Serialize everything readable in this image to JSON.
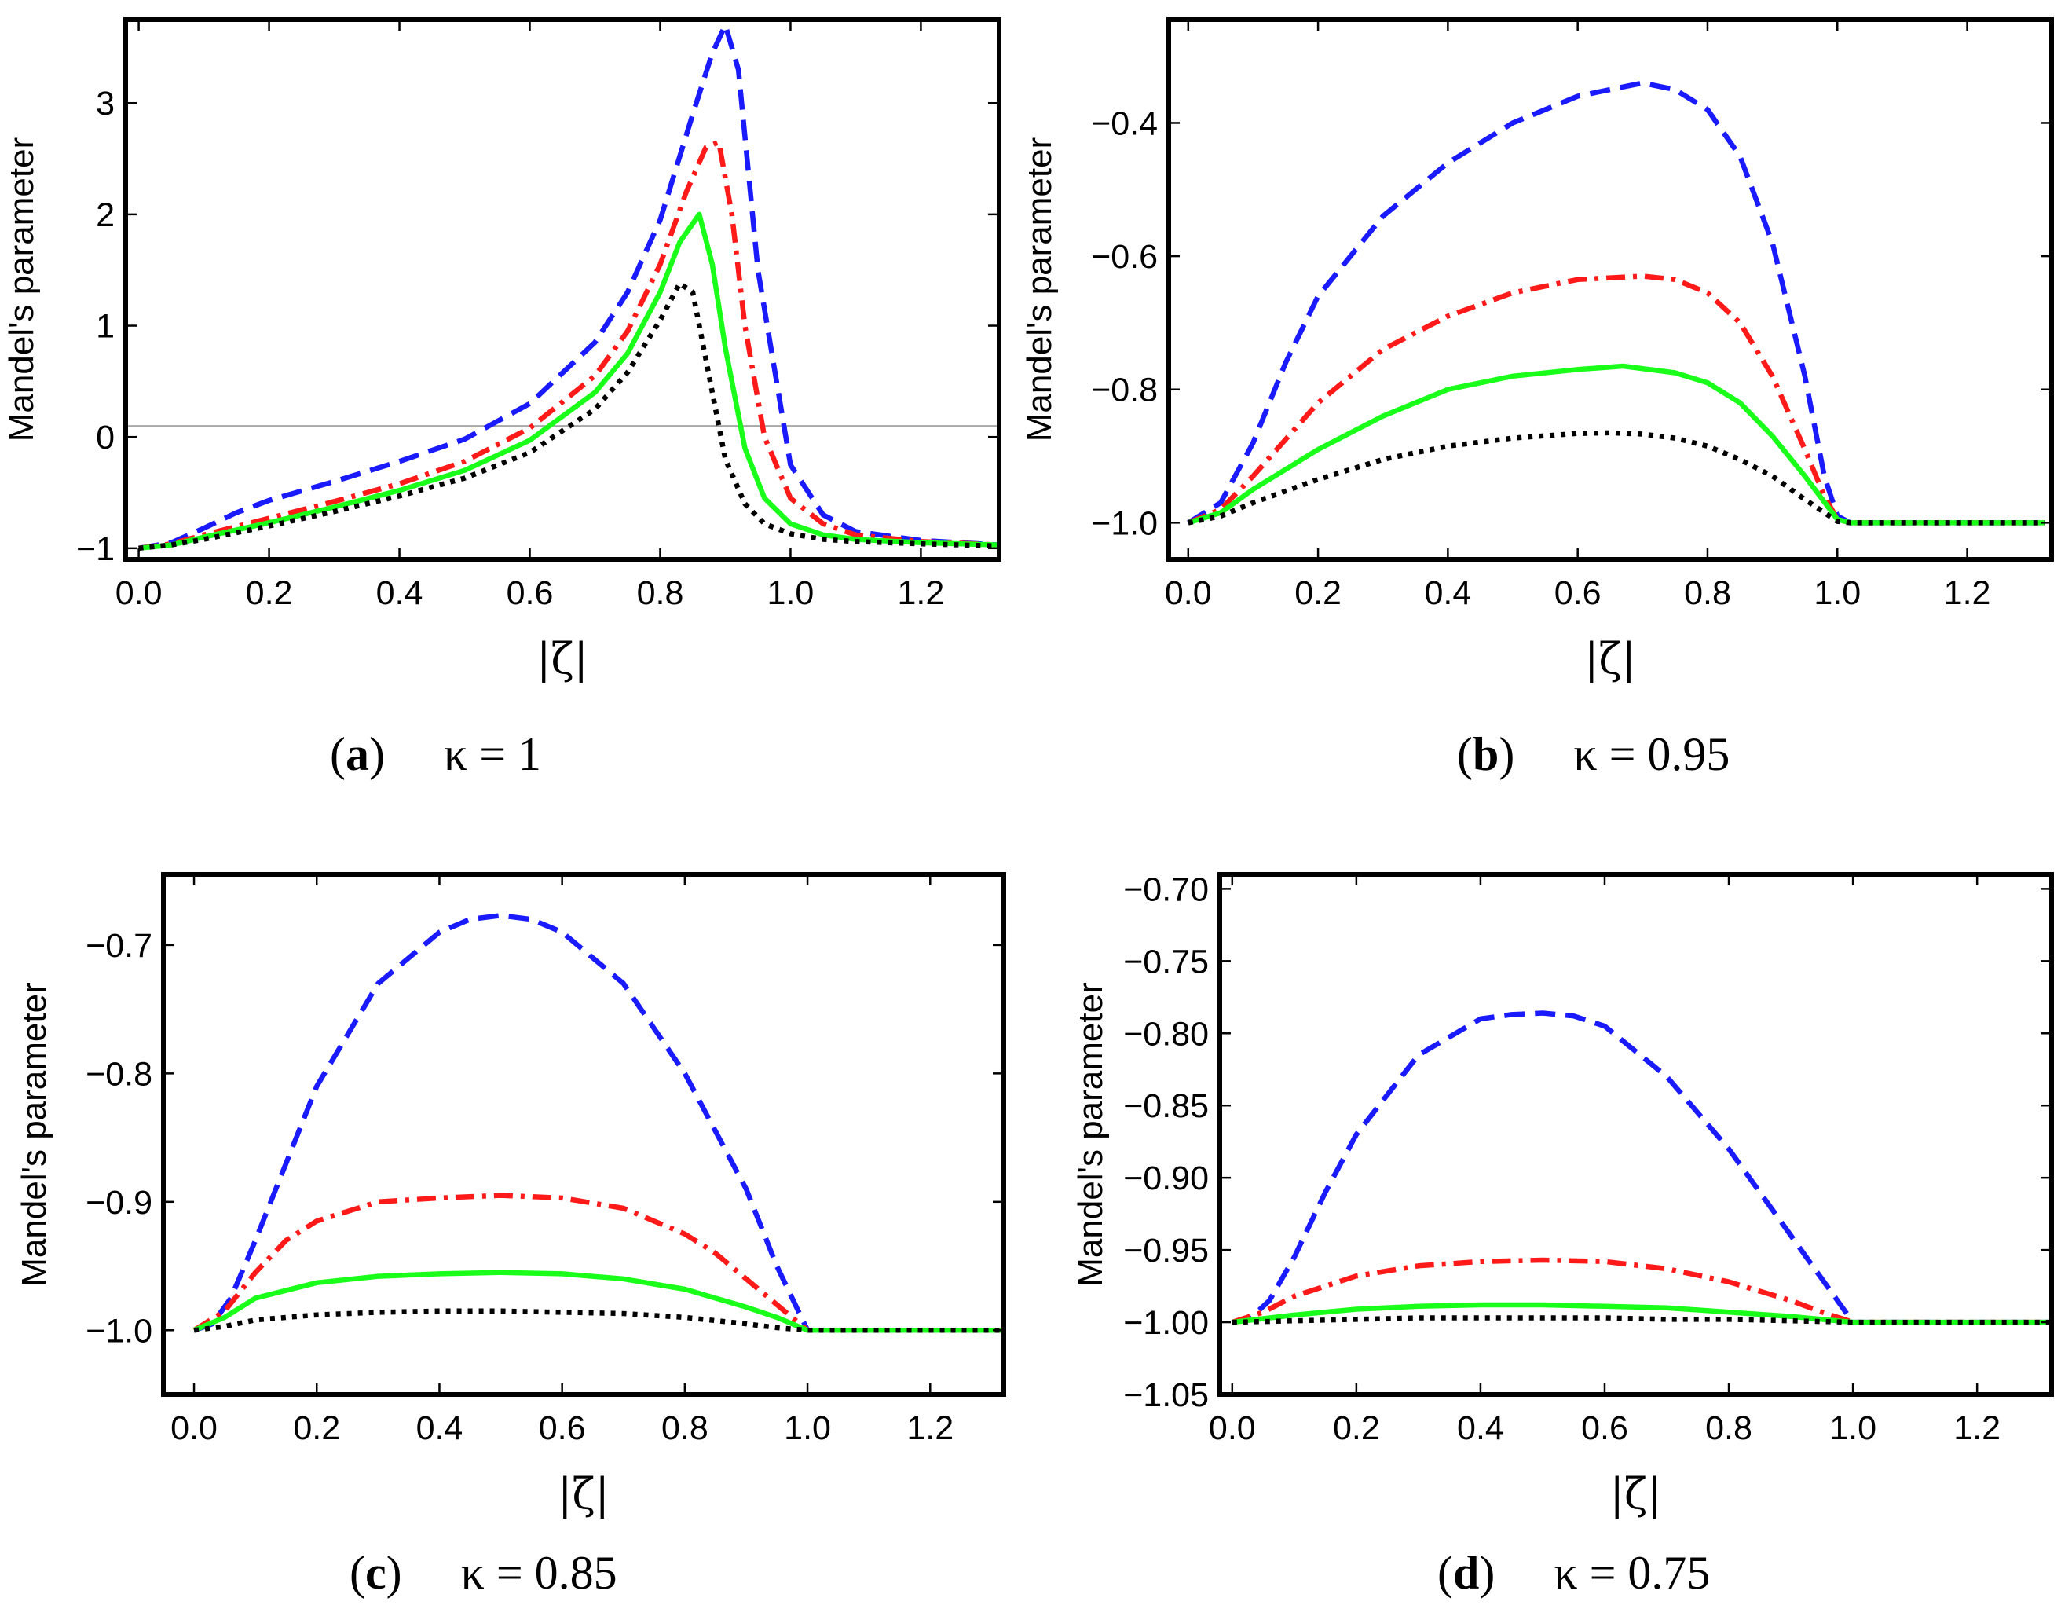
{
  "chart_data": [
    {
      "type": "line",
      "caption": {
        "letter": "a",
        "equation": "κ = 1"
      },
      "xlabel": "|ζ|",
      "ylabel": "Mandel's parameter",
      "xlim": [
        -0.02,
        1.32
      ],
      "ylim": [
        -1.1,
        3.75
      ],
      "xticks": [
        0.0,
        0.2,
        0.4,
        0.6,
        0.8,
        1.0,
        1.2
      ],
      "xtick_labels": [
        "0.0",
        "0.2",
        "0.4",
        "0.6",
        "0.8",
        "1.0",
        "1.2"
      ],
      "yticks": [
        -1,
        0,
        1,
        2,
        3
      ],
      "ytick_labels": [
        "−1",
        "0",
        "1",
        "2",
        "3"
      ],
      "reference_line": 0.1,
      "series": [
        {
          "name": "blue-dashed",
          "color": "#1a1aff",
          "style": "dashed",
          "x": [
            0.0,
            0.05,
            0.1,
            0.15,
            0.2,
            0.3,
            0.4,
            0.5,
            0.6,
            0.7,
            0.75,
            0.8,
            0.85,
            0.88,
            0.9,
            0.92,
            0.95,
            1.0,
            1.05,
            1.1,
            1.2,
            1.32
          ],
          "y": [
            -1.0,
            -0.95,
            -0.82,
            -0.68,
            -0.57,
            -0.4,
            -0.22,
            -0.02,
            0.3,
            0.85,
            1.3,
            1.95,
            2.9,
            3.45,
            3.7,
            3.3,
            1.5,
            -0.25,
            -0.7,
            -0.85,
            -0.93,
            -0.97
          ]
        },
        {
          "name": "red-dashdot",
          "color": "#ff1a1a",
          "style": "dashdot",
          "x": [
            0.0,
            0.05,
            0.1,
            0.2,
            0.3,
            0.4,
            0.5,
            0.6,
            0.7,
            0.75,
            0.8,
            0.84,
            0.87,
            0.89,
            0.91,
            0.93,
            0.96,
            1.0,
            1.05,
            1.1,
            1.2,
            1.32
          ],
          "y": [
            -1.0,
            -0.96,
            -0.88,
            -0.73,
            -0.58,
            -0.42,
            -0.22,
            0.08,
            0.55,
            0.95,
            1.55,
            2.2,
            2.6,
            2.65,
            2.0,
            1.0,
            0.0,
            -0.55,
            -0.78,
            -0.88,
            -0.94,
            -0.97
          ]
        },
        {
          "name": "green-solid",
          "color": "#1aff1a",
          "style": "solid",
          "x": [
            0.0,
            0.05,
            0.1,
            0.2,
            0.3,
            0.4,
            0.5,
            0.6,
            0.7,
            0.75,
            0.8,
            0.83,
            0.86,
            0.88,
            0.9,
            0.93,
            0.96,
            1.0,
            1.05,
            1.1,
            1.2,
            1.32
          ],
          "y": [
            -1.0,
            -0.97,
            -0.9,
            -0.77,
            -0.63,
            -0.48,
            -0.3,
            -0.03,
            0.4,
            0.75,
            1.3,
            1.75,
            2.0,
            1.55,
            0.8,
            -0.1,
            -0.55,
            -0.78,
            -0.88,
            -0.92,
            -0.95,
            -0.97
          ]
        },
        {
          "name": "black-dotted",
          "color": "#000000",
          "style": "dotted",
          "x": [
            0.0,
            0.05,
            0.1,
            0.2,
            0.3,
            0.4,
            0.5,
            0.6,
            0.7,
            0.75,
            0.8,
            0.83,
            0.85,
            0.87,
            0.9,
            0.93,
            0.96,
            1.0,
            1.05,
            1.1,
            1.2,
            1.32
          ],
          "y": [
            -1.0,
            -0.97,
            -0.92,
            -0.8,
            -0.67,
            -0.53,
            -0.37,
            -0.14,
            0.25,
            0.58,
            1.05,
            1.38,
            1.3,
            0.7,
            -0.2,
            -0.6,
            -0.78,
            -0.87,
            -0.92,
            -0.94,
            -0.96,
            -0.98
          ]
        }
      ]
    },
    {
      "type": "line",
      "caption": {
        "letter": "b",
        "equation": "κ = 0.95"
      },
      "xlabel": "|ζ|",
      "ylabel": "Mandel's parameter",
      "xlim": [
        -0.03,
        1.33
      ],
      "ylim": [
        -1.055,
        -0.245
      ],
      "xticks": [
        0.0,
        0.2,
        0.4,
        0.6,
        0.8,
        1.0,
        1.2
      ],
      "xtick_labels": [
        "0.0",
        "0.2",
        "0.4",
        "0.6",
        "0.8",
        "1.0",
        "1.2"
      ],
      "yticks": [
        -1.0,
        -0.8,
        -0.6,
        -0.4
      ],
      "ytick_labels": [
        "−1.0",
        "−0.8",
        "−0.6",
        "−0.4"
      ],
      "series": [
        {
          "name": "blue-dashed",
          "color": "#1a1aff",
          "style": "dashed",
          "x": [
            0.0,
            0.05,
            0.1,
            0.15,
            0.2,
            0.3,
            0.4,
            0.5,
            0.6,
            0.7,
            0.75,
            0.8,
            0.85,
            0.9,
            0.95,
            0.98,
            1.0,
            1.02,
            1.1,
            1.2,
            1.32
          ],
          "y": [
            -1.0,
            -0.97,
            -0.88,
            -0.76,
            -0.66,
            -0.54,
            -0.46,
            -0.4,
            -0.36,
            -0.34,
            -0.35,
            -0.38,
            -0.45,
            -0.58,
            -0.78,
            -0.93,
            -0.99,
            -1.0,
            -1.0,
            -1.0,
            -1.0
          ]
        },
        {
          "name": "red-dashdot",
          "color": "#ff1a1a",
          "style": "dashdot",
          "x": [
            0.0,
            0.05,
            0.1,
            0.2,
            0.3,
            0.4,
            0.5,
            0.6,
            0.7,
            0.75,
            0.8,
            0.85,
            0.9,
            0.95,
            0.98,
            1.0,
            1.02,
            1.1,
            1.2,
            1.32
          ],
          "y": [
            -1.0,
            -0.98,
            -0.93,
            -0.82,
            -0.74,
            -0.69,
            -0.655,
            -0.635,
            -0.63,
            -0.635,
            -0.655,
            -0.7,
            -0.78,
            -0.89,
            -0.96,
            -0.995,
            -1.0,
            -1.0,
            -1.0,
            -1.0
          ]
        },
        {
          "name": "green-solid",
          "color": "#1aff1a",
          "style": "solid",
          "x": [
            0.0,
            0.05,
            0.1,
            0.2,
            0.3,
            0.4,
            0.5,
            0.6,
            0.67,
            0.75,
            0.8,
            0.85,
            0.9,
            0.95,
            1.0,
            1.02,
            1.1,
            1.2,
            1.32
          ],
          "y": [
            -1.0,
            -0.985,
            -0.95,
            -0.89,
            -0.84,
            -0.8,
            -0.78,
            -0.77,
            -0.765,
            -0.775,
            -0.79,
            -0.82,
            -0.87,
            -0.93,
            -0.995,
            -1.0,
            -1.0,
            -1.0,
            -1.0
          ]
        },
        {
          "name": "black-dotted",
          "color": "#000000",
          "style": "dotted",
          "x": [
            0.0,
            0.05,
            0.1,
            0.2,
            0.3,
            0.4,
            0.5,
            0.6,
            0.65,
            0.7,
            0.75,
            0.8,
            0.85,
            0.9,
            0.95,
            1.0,
            1.02,
            1.1,
            1.2,
            1.32
          ],
          "y": [
            -1.0,
            -0.99,
            -0.97,
            -0.935,
            -0.905,
            -0.885,
            -0.873,
            -0.866,
            -0.865,
            -0.867,
            -0.873,
            -0.885,
            -0.905,
            -0.93,
            -0.965,
            -0.998,
            -1.0,
            -1.0,
            -1.0,
            -1.0
          ]
        }
      ]
    },
    {
      "type": "line",
      "caption": {
        "letter": "c",
        "equation": "κ = 0.85"
      },
      "xlabel": "|ζ|",
      "ylabel": "Mandel's parameter",
      "xlim": [
        -0.05,
        1.32
      ],
      "ylim": [
        -1.05,
        -0.645
      ],
      "xticks": [
        0.0,
        0.2,
        0.4,
        0.6,
        0.8,
        1.0,
        1.2
      ],
      "xtick_labels": [
        "0.0",
        "0.2",
        "0.4",
        "0.6",
        "0.8",
        "1.0",
        "1.2"
      ],
      "yticks": [
        -1.0,
        -0.9,
        -0.8,
        -0.7
      ],
      "ytick_labels": [
        "−1.0",
        "−0.9",
        "−0.8",
        "−0.7"
      ],
      "series": [
        {
          "name": "blue-dashed",
          "color": "#1a1aff",
          "style": "dashed",
          "x": [
            0.0,
            0.03,
            0.06,
            0.1,
            0.15,
            0.2,
            0.3,
            0.4,
            0.45,
            0.5,
            0.55,
            0.6,
            0.7,
            0.8,
            0.9,
            0.95,
            1.0,
            1.05,
            1.1,
            1.2,
            1.32
          ],
          "y": [
            -1.0,
            -0.995,
            -0.975,
            -0.93,
            -0.87,
            -0.81,
            -0.73,
            -0.69,
            -0.68,
            -0.677,
            -0.68,
            -0.69,
            -0.73,
            -0.8,
            -0.89,
            -0.95,
            -1.0,
            -1.0,
            -1.0,
            -1.0,
            -1.0
          ]
        },
        {
          "name": "red-dashdot",
          "color": "#ff1a1a",
          "style": "dashdot",
          "x": [
            0.0,
            0.05,
            0.1,
            0.15,
            0.2,
            0.3,
            0.4,
            0.5,
            0.6,
            0.7,
            0.8,
            0.85,
            0.9,
            0.95,
            1.0,
            1.05,
            1.1,
            1.2,
            1.32
          ],
          "y": [
            -1.0,
            -0.985,
            -0.955,
            -0.93,
            -0.915,
            -0.9,
            -0.897,
            -0.895,
            -0.897,
            -0.905,
            -0.925,
            -0.94,
            -0.96,
            -0.98,
            -1.0,
            -1.0,
            -1.0,
            -1.0,
            -1.0
          ]
        },
        {
          "name": "green-solid",
          "color": "#1aff1a",
          "style": "solid",
          "x": [
            0.0,
            0.05,
            0.1,
            0.2,
            0.3,
            0.4,
            0.5,
            0.6,
            0.7,
            0.8,
            0.9,
            0.95,
            1.0,
            1.05,
            1.1,
            1.2,
            1.32
          ],
          "y": [
            -1.0,
            -0.99,
            -0.975,
            -0.963,
            -0.958,
            -0.956,
            -0.955,
            -0.956,
            -0.96,
            -0.968,
            -0.982,
            -0.99,
            -1.0,
            -1.0,
            -1.0,
            -1.0,
            -1.0
          ]
        },
        {
          "name": "black-dotted",
          "color": "#000000",
          "style": "dotted",
          "x": [
            0.0,
            0.05,
            0.1,
            0.2,
            0.3,
            0.4,
            0.5,
            0.6,
            0.7,
            0.8,
            0.9,
            0.95,
            1.0,
            1.05,
            1.1,
            1.2,
            1.32
          ],
          "y": [
            -1.0,
            -0.997,
            -0.992,
            -0.988,
            -0.986,
            -0.985,
            -0.985,
            -0.986,
            -0.987,
            -0.99,
            -0.995,
            -0.998,
            -1.0,
            -1.0,
            -1.0,
            -1.0,
            -1.0
          ]
        }
      ]
    },
    {
      "type": "line",
      "caption": {
        "letter": "d",
        "equation": "κ = 0.75"
      },
      "xlabel": "|ζ|",
      "ylabel": "Mandel's parameter",
      "xlim": [
        -0.02,
        1.32
      ],
      "ylim": [
        -1.05,
        -0.69
      ],
      "xticks": [
        0.0,
        0.2,
        0.4,
        0.6,
        0.8,
        1.0,
        1.2
      ],
      "xtick_labels": [
        "0.0",
        "0.2",
        "0.4",
        "0.6",
        "0.8",
        "1.0",
        "1.2"
      ],
      "yticks": [
        -1.05,
        -1.0,
        -0.95,
        -0.9,
        -0.85,
        -0.8,
        -0.75,
        -0.7
      ],
      "ytick_labels": [
        "−1.05",
        "−1.00",
        "−0.95",
        "−0.90",
        "−0.85",
        "−0.80",
        "−0.75",
        "−0.70"
      ],
      "series": [
        {
          "name": "blue-dashed",
          "color": "#1a1aff",
          "style": "dashed",
          "x": [
            0.0,
            0.03,
            0.06,
            0.1,
            0.15,
            0.2,
            0.3,
            0.4,
            0.45,
            0.5,
            0.55,
            0.6,
            0.7,
            0.8,
            0.9,
            0.95,
            1.0,
            1.05,
            1.1,
            1.2,
            1.32
          ],
          "y": [
            -1.0,
            -0.997,
            -0.985,
            -0.955,
            -0.91,
            -0.87,
            -0.815,
            -0.79,
            -0.787,
            -0.786,
            -0.788,
            -0.795,
            -0.83,
            -0.88,
            -0.94,
            -0.97,
            -1.0,
            -1.0,
            -1.0,
            -1.0,
            -1.0
          ]
        },
        {
          "name": "red-dashdot",
          "color": "#ff1a1a",
          "style": "dashdot",
          "x": [
            0.0,
            0.05,
            0.1,
            0.2,
            0.3,
            0.4,
            0.5,
            0.6,
            0.7,
            0.8,
            0.9,
            0.95,
            1.0,
            1.05,
            1.1,
            1.2,
            1.32
          ],
          "y": [
            -1.0,
            -0.993,
            -0.982,
            -0.968,
            -0.961,
            -0.958,
            -0.957,
            -0.958,
            -0.963,
            -0.972,
            -0.985,
            -0.993,
            -1.0,
            -1.0,
            -1.0,
            -1.0,
            -1.0
          ]
        },
        {
          "name": "green-solid",
          "color": "#1aff1a",
          "style": "solid",
          "x": [
            0.0,
            0.1,
            0.2,
            0.3,
            0.4,
            0.5,
            0.6,
            0.7,
            0.8,
            0.9,
            1.0,
            1.1,
            1.2,
            1.32
          ],
          "y": [
            -1.0,
            -0.995,
            -0.991,
            -0.989,
            -0.988,
            -0.988,
            -0.989,
            -0.99,
            -0.993,
            -0.996,
            -1.0,
            -1.0,
            -1.0,
            -1.0
          ]
        },
        {
          "name": "black-dotted",
          "color": "#000000",
          "style": "dotted",
          "x": [
            0.0,
            0.1,
            0.2,
            0.3,
            0.4,
            0.5,
            0.6,
            0.7,
            0.8,
            0.9,
            1.0,
            1.1,
            1.2,
            1.32
          ],
          "y": [
            -1.0,
            -0.999,
            -0.998,
            -0.997,
            -0.997,
            -0.997,
            -0.997,
            -0.998,
            -0.998,
            -0.999,
            -1.0,
            -1.0,
            -1.0,
            -1.0
          ]
        }
      ]
    }
  ]
}
